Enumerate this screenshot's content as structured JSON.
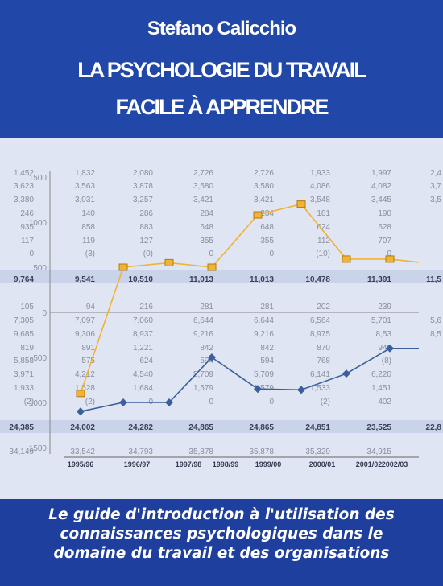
{
  "cover": {
    "author": "Stefano Calicchio",
    "title_line_1": "LA PSYCHOLOGIE DU TRAVAIL",
    "title_line_2": "FACILE À APPRENDRE",
    "subtitle_line_1": "Le guide d'introduction à l'utilisation des",
    "subtitle_line_2": "connaissances psychologiques dans le",
    "subtitle_line_3": "domaine du travail et des organisations",
    "colors": {
      "title_band": "#2147a8",
      "chart_background": "#dfe5f2",
      "bottom_band": "#1f3f9e",
      "orange_series": "#f2b233",
      "blue_series": "#3a5f9c"
    }
  },
  "chart_data": {
    "type": "line",
    "categories": [
      "1995/96",
      "1996/97",
      "1997/98",
      "1998/99",
      "1999/00",
      "2000/01",
      "2001/02",
      "2002/03"
    ],
    "top_axis_ticks": [
      "1500",
      "1000",
      "500",
      "0"
    ],
    "bottom_axis_ticks": [
      "-500",
      "-1000",
      "-1500"
    ],
    "series": [
      {
        "color": "#f2b233",
        "values": [
          -900,
          500,
          550,
          500,
          1080,
          1200,
          590,
          590
        ]
      },
      {
        "color": "#3a5f9c",
        "values": [
          -1100,
          -1000,
          -1000,
          -500,
          -850,
          -860,
          -680,
          -400
        ]
      }
    ],
    "table_columns": [
      [
        "1,452",
        "3,623",
        "3,380",
        "246",
        "935",
        "117",
        "0",
        "9,764",
        "105",
        "7,305",
        "9,685",
        "819",
        "5,858",
        "3,971",
        "1,933",
        "(2)",
        "24,385",
        "34,149"
      ],
      [
        "1,832",
        "3,563",
        "3,031",
        "140",
        "858",
        "119",
        "(3)",
        "9,541",
        "94",
        "7,097",
        "9,306",
        "891",
        "575",
        "4,212",
        "1,528",
        "(2)",
        "24,002",
        "33,542"
      ],
      [
        "2,080",
        "3,878",
        "3,257",
        "286",
        "883",
        "127",
        "(0)",
        "10,510",
        "216",
        "7,060",
        "8,937",
        "1,221",
        "624",
        "4,540",
        "1,684",
        "0",
        "24,282",
        "34,793"
      ],
      [
        "2,726",
        "3,580",
        "3,421",
        "284",
        "648",
        "355",
        "0",
        "11,013",
        "281",
        "6,644",
        "9,216",
        "842",
        "594",
        "5,709",
        "1,579",
        "0",
        "24,865",
        "35,878"
      ],
      [
        "2,726",
        "3,580",
        "3,421",
        "284",
        "648",
        "355",
        "0",
        "11,013",
        "281",
        "6,644",
        "9,216",
        "842",
        "594",
        "5,709",
        "1,579",
        "0",
        "24,865",
        "35,878"
      ],
      [
        "1,933",
        "4,086",
        "3,548",
        "181",
        "624",
        "112",
        "(10)",
        "10,478",
        "202",
        "6,564",
        "8,975",
        "870",
        "768",
        "6,141",
        "1,533",
        "(2)",
        "24,851",
        "35,329"
      ],
      [
        "1,997",
        "4,082",
        "3,445",
        "190",
        "628",
        "707",
        "0",
        "11,391",
        "239",
        "5,701",
        "8,53",
        "946",
        "(8)",
        "6,220",
        "1,451",
        "402",
        "23,525",
        "34,915"
      ],
      [
        "2,4",
        "3,7",
        "3,5",
        "",
        "",
        "",
        "",
        "11,5",
        "",
        "5,6",
        "8,5",
        "",
        "",
        "",
        "",
        "",
        "22,8",
        ""
      ]
    ]
  }
}
